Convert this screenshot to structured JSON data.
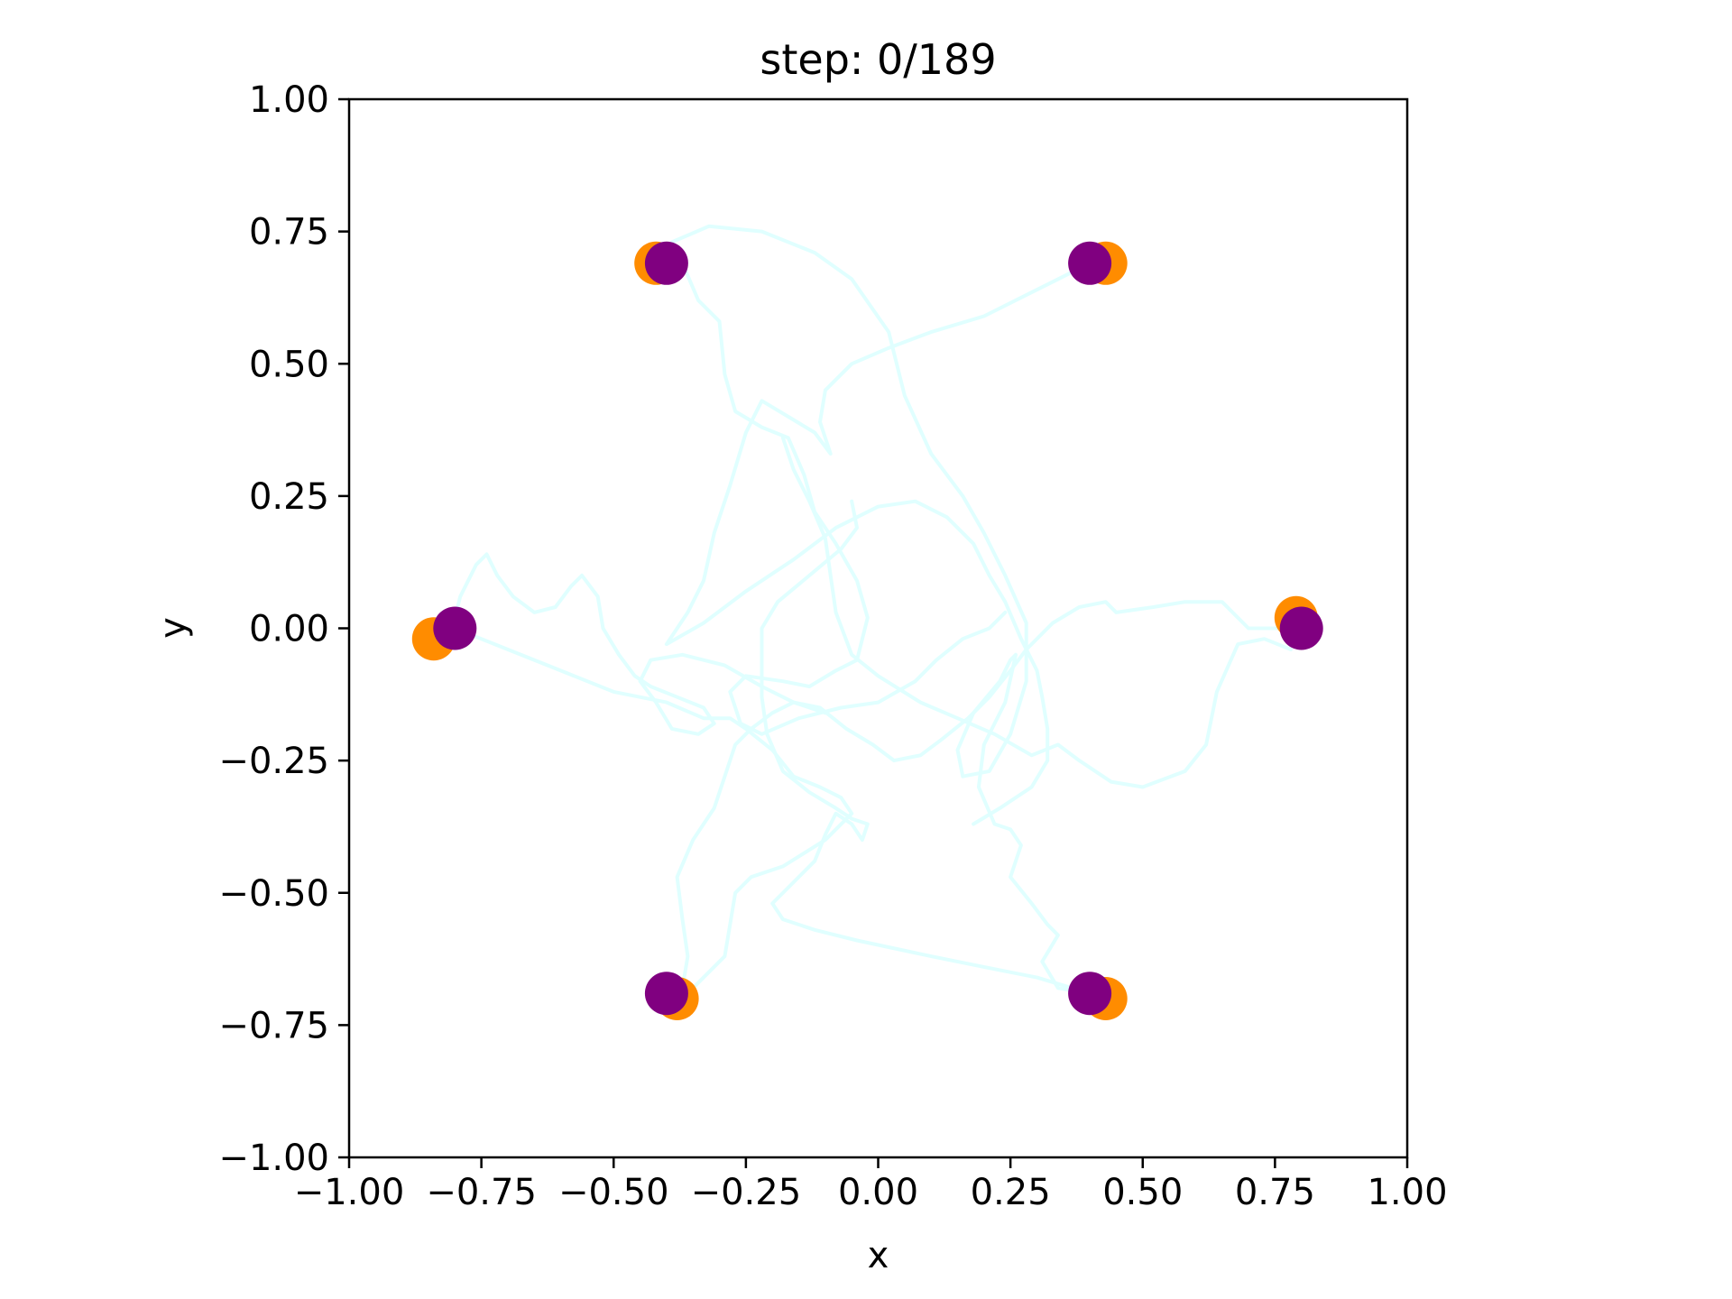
{
  "chart_data": {
    "type": "scatter",
    "title": "step: 0/189",
    "xlabel": "x",
    "ylabel": "y",
    "xlim": [
      -1.0,
      1.0
    ],
    "ylim": [
      -1.0,
      1.0
    ],
    "xticks": [
      "−1.00",
      "−0.75",
      "−0.50",
      "−0.25",
      "0.00",
      "0.25",
      "0.50",
      "0.75",
      "1.00"
    ],
    "yticks": [
      "1.00",
      "0.75",
      "0.50",
      "0.25",
      "0.00",
      "−0.25",
      "−0.50",
      "−0.75",
      "−1.00"
    ],
    "xtick_values": [
      -1.0,
      -0.75,
      -0.5,
      -0.25,
      0.0,
      0.25,
      0.5,
      0.75,
      1.0
    ],
    "ytick_values": [
      1.0,
      0.75,
      0.5,
      0.25,
      0.0,
      -0.25,
      -0.5,
      -0.75,
      -1.0
    ],
    "grid": false,
    "colors": {
      "current": "#800080",
      "target": "#ff8c00",
      "trail": "#e0ffff"
    },
    "series": [
      {
        "role": "target",
        "x": [
          -0.42,
          0.43,
          0.79,
          0.43,
          -0.38,
          -0.84
        ],
        "y": [
          0.69,
          0.69,
          0.02,
          -0.7,
          -0.7,
          -0.02
        ]
      },
      {
        "role": "current",
        "x": [
          -0.4,
          0.4,
          0.8,
          0.4,
          -0.4,
          -0.8
        ],
        "y": [
          0.69,
          0.69,
          0.0,
          -0.69,
          -0.69,
          0.0
        ]
      }
    ],
    "trails": [
      [
        [
          -0.39,
          0.73
        ],
        [
          -0.32,
          0.76
        ],
        [
          -0.22,
          0.75
        ],
        [
          -0.12,
          0.71
        ],
        [
          -0.05,
          0.66
        ],
        [
          0.02,
          0.56
        ],
        [
          0.05,
          0.44
        ],
        [
          0.1,
          0.33
        ],
        [
          0.16,
          0.25
        ],
        [
          0.2,
          0.18
        ],
        [
          0.24,
          0.1
        ],
        [
          0.28,
          0.01
        ],
        [
          0.28,
          -0.1
        ],
        [
          0.25,
          -0.2
        ],
        [
          0.21,
          -0.27
        ],
        [
          0.16,
          -0.28
        ],
        [
          0.15,
          -0.23
        ],
        [
          0.18,
          -0.16
        ],
        [
          0.23,
          -0.1
        ],
        [
          0.25,
          -0.06
        ],
        [
          0.26,
          -0.05
        ],
        [
          0.24,
          -0.14
        ],
        [
          0.2,
          -0.22
        ],
        [
          0.19,
          -0.3
        ],
        [
          0.22,
          -0.37
        ],
        [
          0.25,
          -0.38
        ],
        [
          0.27,
          -0.41
        ],
        [
          0.25,
          -0.47
        ],
        [
          0.29,
          -0.52
        ],
        [
          0.32,
          -0.56
        ],
        [
          0.34,
          -0.58
        ],
        [
          0.31,
          -0.63
        ],
        [
          0.34,
          -0.68
        ],
        [
          0.4,
          -0.69
        ]
      ],
      [
        [
          -0.37,
          0.69
        ],
        [
          -0.34,
          0.62
        ],
        [
          -0.3,
          0.58
        ],
        [
          -0.29,
          0.48
        ],
        [
          -0.27,
          0.41
        ],
        [
          -0.22,
          0.38
        ],
        [
          -0.17,
          0.36
        ],
        [
          -0.14,
          0.29
        ],
        [
          -0.12,
          0.22
        ],
        [
          -0.08,
          0.16
        ],
        [
          -0.04,
          0.09
        ],
        [
          -0.02,
          0.02
        ],
        [
          -0.04,
          -0.06
        ],
        [
          -0.08,
          -0.08
        ],
        [
          -0.13,
          -0.11
        ],
        [
          -0.18,
          -0.1
        ],
        [
          -0.25,
          -0.09
        ],
        [
          -0.28,
          -0.12
        ],
        [
          -0.26,
          -0.18
        ],
        [
          -0.22,
          -0.2
        ],
        [
          -0.15,
          -0.17
        ],
        [
          -0.07,
          -0.15
        ],
        [
          0.0,
          -0.14
        ],
        [
          0.07,
          -0.1
        ],
        [
          0.11,
          -0.06
        ],
        [
          0.16,
          -0.02
        ],
        [
          0.21,
          0.0
        ],
        [
          0.24,
          0.03
        ]
      ],
      [
        [
          0.4,
          0.69
        ],
        [
          0.32,
          0.65
        ],
        [
          0.2,
          0.59
        ],
        [
          0.1,
          0.56
        ],
        [
          0.02,
          0.53
        ],
        [
          -0.05,
          0.5
        ],
        [
          -0.1,
          0.45
        ],
        [
          -0.11,
          0.39
        ],
        [
          -0.09,
          0.33
        ],
        [
          -0.12,
          0.37
        ],
        [
          -0.17,
          0.4
        ],
        [
          -0.22,
          0.43
        ],
        [
          -0.25,
          0.37
        ],
        [
          -0.28,
          0.27
        ],
        [
          -0.31,
          0.18
        ],
        [
          -0.33,
          0.09
        ],
        [
          -0.36,
          0.03
        ],
        [
          -0.4,
          -0.03
        ],
        [
          -0.33,
          0.01
        ],
        [
          -0.25,
          0.07
        ],
        [
          -0.16,
          0.13
        ],
        [
          -0.08,
          0.19
        ],
        [
          0.0,
          0.23
        ],
        [
          0.07,
          0.24
        ],
        [
          0.13,
          0.21
        ],
        [
          0.18,
          0.16
        ],
        [
          0.21,
          0.1
        ],
        [
          0.24,
          0.05
        ],
        [
          0.27,
          -0.02
        ],
        [
          0.3,
          -0.08
        ],
        [
          0.31,
          -0.13
        ],
        [
          0.32,
          -0.19
        ],
        [
          0.32,
          -0.25
        ],
        [
          0.29,
          -0.3
        ],
        [
          0.23,
          -0.34
        ],
        [
          0.18,
          -0.37
        ]
      ],
      [
        [
          0.8,
          0.0
        ],
        [
          0.74,
          0.0
        ],
        [
          0.7,
          0.0
        ],
        [
          0.65,
          0.05
        ],
        [
          0.58,
          0.05
        ],
        [
          0.52,
          0.04
        ],
        [
          0.45,
          0.03
        ],
        [
          0.43,
          0.05
        ],
        [
          0.38,
          0.04
        ],
        [
          0.33,
          0.01
        ],
        [
          0.28,
          -0.04
        ],
        [
          0.25,
          -0.08
        ],
        [
          0.21,
          -0.13
        ],
        [
          0.17,
          -0.17
        ],
        [
          0.12,
          -0.21
        ],
        [
          0.08,
          -0.24
        ],
        [
          0.03,
          -0.25
        ],
        [
          -0.01,
          -0.22
        ],
        [
          -0.06,
          -0.19
        ],
        [
          -0.11,
          -0.15
        ],
        [
          -0.16,
          -0.14
        ],
        [
          -0.2,
          -0.16
        ],
        [
          -0.24,
          -0.19
        ],
        [
          -0.27,
          -0.22
        ],
        [
          -0.29,
          -0.28
        ],
        [
          -0.31,
          -0.34
        ],
        [
          -0.35,
          -0.4
        ],
        [
          -0.38,
          -0.47
        ],
        [
          -0.37,
          -0.55
        ],
        [
          -0.36,
          -0.62
        ],
        [
          -0.37,
          -0.68
        ]
      ],
      [
        [
          0.78,
          -0.04
        ],
        [
          0.73,
          -0.02
        ],
        [
          0.68,
          -0.03
        ],
        [
          0.64,
          -0.12
        ],
        [
          0.62,
          -0.22
        ],
        [
          0.58,
          -0.27
        ],
        [
          0.5,
          -0.3
        ],
        [
          0.44,
          -0.29
        ],
        [
          0.38,
          -0.25
        ],
        [
          0.34,
          -0.22
        ],
        [
          0.29,
          -0.24
        ],
        [
          0.22,
          -0.2
        ],
        [
          0.15,
          -0.17
        ],
        [
          0.08,
          -0.14
        ],
        [
          0.0,
          -0.09
        ],
        [
          -0.05,
          -0.05
        ],
        [
          -0.08,
          0.03
        ],
        [
          -0.09,
          0.1
        ],
        [
          -0.1,
          0.17
        ],
        [
          -0.13,
          0.24
        ],
        [
          -0.16,
          0.3
        ],
        [
          -0.18,
          0.36
        ]
      ],
      [
        [
          0.4,
          -0.69
        ],
        [
          0.3,
          -0.66
        ],
        [
          0.2,
          -0.64
        ],
        [
          0.1,
          -0.62
        ],
        [
          -0.04,
          -0.59
        ],
        [
          -0.12,
          -0.57
        ],
        [
          -0.18,
          -0.55
        ],
        [
          -0.2,
          -0.52
        ],
        [
          -0.16,
          -0.48
        ],
        [
          -0.12,
          -0.44
        ],
        [
          -0.1,
          -0.39
        ],
        [
          -0.08,
          -0.35
        ],
        [
          -0.05,
          -0.37
        ],
        [
          -0.03,
          -0.4
        ],
        [
          -0.02,
          -0.37
        ],
        [
          -0.05,
          -0.36
        ],
        [
          -0.08,
          -0.34
        ],
        [
          -0.13,
          -0.31
        ],
        [
          -0.18,
          -0.27
        ],
        [
          -0.21,
          -0.2
        ],
        [
          -0.22,
          -0.13
        ],
        [
          -0.22,
          -0.06
        ],
        [
          -0.22,
          0.0
        ],
        [
          -0.19,
          0.05
        ],
        [
          -0.13,
          0.1
        ],
        [
          -0.07,
          0.15
        ],
        [
          -0.04,
          0.19
        ],
        [
          -0.05,
          0.24
        ]
      ],
      [
        [
          -0.8,
          0.0
        ],
        [
          -0.7,
          -0.04
        ],
        [
          -0.6,
          -0.08
        ],
        [
          -0.5,
          -0.12
        ],
        [
          -0.4,
          -0.14
        ],
        [
          -0.33,
          -0.17
        ],
        [
          -0.28,
          -0.17
        ],
        [
          -0.25,
          -0.19
        ],
        [
          -0.2,
          -0.23
        ],
        [
          -0.16,
          -0.28
        ],
        [
          -0.11,
          -0.3
        ],
        [
          -0.07,
          -0.32
        ],
        [
          -0.05,
          -0.35
        ],
        [
          -0.1,
          -0.4
        ],
        [
          -0.18,
          -0.45
        ],
        [
          -0.24,
          -0.47
        ],
        [
          -0.27,
          -0.5
        ],
        [
          -0.28,
          -0.56
        ],
        [
          -0.29,
          -0.62
        ],
        [
          -0.35,
          -0.68
        ],
        [
          -0.4,
          -0.69
        ]
      ],
      [
        [
          -0.8,
          0.02
        ],
        [
          -0.79,
          0.06
        ],
        [
          -0.76,
          0.12
        ],
        [
          -0.74,
          0.14
        ],
        [
          -0.72,
          0.1
        ],
        [
          -0.69,
          0.06
        ],
        [
          -0.65,
          0.03
        ],
        [
          -0.61,
          0.04
        ],
        [
          -0.58,
          0.08
        ],
        [
          -0.56,
          0.1
        ],
        [
          -0.53,
          0.06
        ],
        [
          -0.52,
          0.0
        ],
        [
          -0.49,
          -0.05
        ],
        [
          -0.46,
          -0.09
        ],
        [
          -0.43,
          -0.11
        ],
        [
          -0.38,
          -0.13
        ],
        [
          -0.33,
          -0.15
        ],
        [
          -0.31,
          -0.18
        ],
        [
          -0.34,
          -0.2
        ],
        [
          -0.39,
          -0.19
        ],
        [
          -0.42,
          -0.14
        ],
        [
          -0.45,
          -0.1
        ],
        [
          -0.43,
          -0.06
        ],
        [
          -0.37,
          -0.05
        ],
        [
          -0.29,
          -0.07
        ],
        [
          -0.22,
          -0.11
        ],
        [
          -0.16,
          -0.14
        ],
        [
          -0.1,
          -0.16
        ]
      ]
    ]
  }
}
